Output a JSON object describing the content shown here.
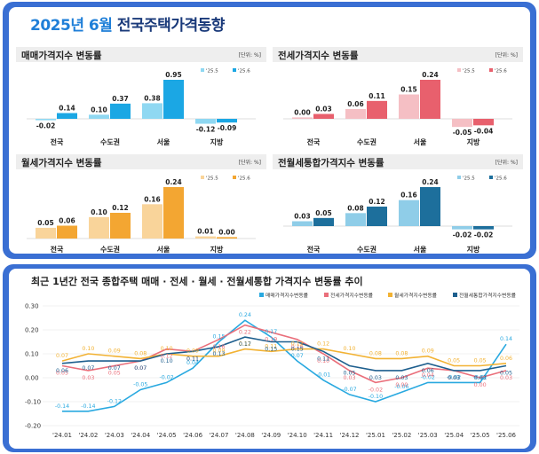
{
  "header": {
    "year_month": "2025년 6월",
    "title_rest": " 전국주택가격동향"
  },
  "chart_data": [
    {
      "type": "bar",
      "title": "매매가격지수 변동률",
      "unit": "[단위: %]",
      "categories": [
        "전국",
        "수도권",
        "서울",
        "지방"
      ],
      "series": [
        {
          "name": "'25.5",
          "values": [
            -0.02,
            0.1,
            0.38,
            -0.12
          ],
          "color": "#8fd8f2"
        },
        {
          "name": "'25.6",
          "values": [
            0.14,
            0.37,
            0.95,
            -0.09
          ],
          "color": "#1ba7e4"
        }
      ]
    },
    {
      "type": "bar",
      "title": "전세가격지수 변동률",
      "unit": "[단위: %]",
      "categories": [
        "전국",
        "수도권",
        "서울",
        "지방"
      ],
      "series": [
        {
          "name": "'25.5",
          "values": [
            0.0,
            0.06,
            0.15,
            -0.05
          ],
          "color": "#f5bfc4"
        },
        {
          "name": "'25.6",
          "values": [
            0.03,
            0.11,
            0.24,
            -0.04
          ],
          "color": "#e8606d"
        }
      ]
    },
    {
      "type": "bar",
      "title": "월세가격지수 변동률",
      "unit": "[단위: %]",
      "categories": [
        "전국",
        "수도권",
        "서울",
        "지방"
      ],
      "series": [
        {
          "name": "'25.5",
          "values": [
            0.05,
            0.1,
            0.16,
            0.01
          ],
          "color": "#f9d49a"
        },
        {
          "name": "'25.6",
          "values": [
            0.06,
            0.12,
            0.24,
            0.0
          ],
          "color": "#f3a632"
        }
      ]
    },
    {
      "type": "bar",
      "title": "전월세통합가격지수 변동률",
      "unit": "[단위: %]",
      "categories": [
        "전국",
        "수도권",
        "서울",
        "지방"
      ],
      "series": [
        {
          "name": "'25.5",
          "values": [
            0.03,
            0.08,
            0.16,
            -0.02
          ],
          "color": "#8fcde8"
        },
        {
          "name": "'25.6",
          "values": [
            0.05,
            0.12,
            0.24,
            -0.02
          ],
          "color": "#1d6f9c"
        }
      ]
    },
    {
      "type": "line",
      "title": "최근 1년간 전국 종합주택 매매 · 전세 · 월세 · 전월세통합 가격지수 변동률 추이",
      "x": [
        "'24.01",
        "'24.02",
        "'24.03",
        "'24.04",
        "'24.05",
        "'24.06",
        "'24.07",
        "'24.08",
        "'24.09",
        "'24.10",
        "'24.11",
        "'24.12",
        "'25.01",
        "'25.02",
        "'25.03",
        "'25.04",
        "'25.05",
        "'25.06"
      ],
      "ylim": [
        -0.2,
        0.3
      ],
      "yticks": [
        "-0.20",
        "-0.10",
        "0.00",
        "0.10",
        "0.20",
        "0.30"
      ],
      "series": [
        {
          "name": "매매가격지수변동률",
          "color": "#29a9e0",
          "values": [
            -0.14,
            -0.14,
            -0.12,
            -0.05,
            -0.02,
            0.04,
            0.15,
            0.24,
            0.17,
            0.07,
            -0.01,
            -0.07,
            -0.1,
            -0.06,
            -0.02,
            -0.02,
            -0.02,
            0.14
          ]
        },
        {
          "name": "전세가격지수변동률",
          "color": "#ea6f7b",
          "values": [
            0.05,
            0.03,
            0.05,
            0.07,
            0.12,
            0.11,
            0.16,
            0.22,
            0.19,
            0.16,
            0.1,
            0.03,
            -0.02,
            0.0,
            0.04,
            0.03,
            0.0,
            0.03
          ]
        },
        {
          "name": "월세가격지수변동률",
          "color": "#f2b233",
          "values": [
            0.07,
            0.1,
            0.09,
            0.08,
            0.1,
            0.09,
            0.09,
            0.12,
            0.11,
            0.12,
            0.12,
            0.1,
            0.08,
            0.08,
            0.09,
            0.05,
            0.05,
            0.06
          ]
        },
        {
          "name": "전월세통합가격지수변동률",
          "color": "#1e5f8e",
          "values": [
            0.06,
            0.07,
            0.07,
            0.07,
            0.1,
            0.11,
            0.13,
            0.17,
            0.15,
            0.15,
            0.11,
            0.05,
            0.03,
            0.03,
            0.06,
            0.03,
            0.03,
            0.05
          ]
        }
      ]
    }
  ]
}
